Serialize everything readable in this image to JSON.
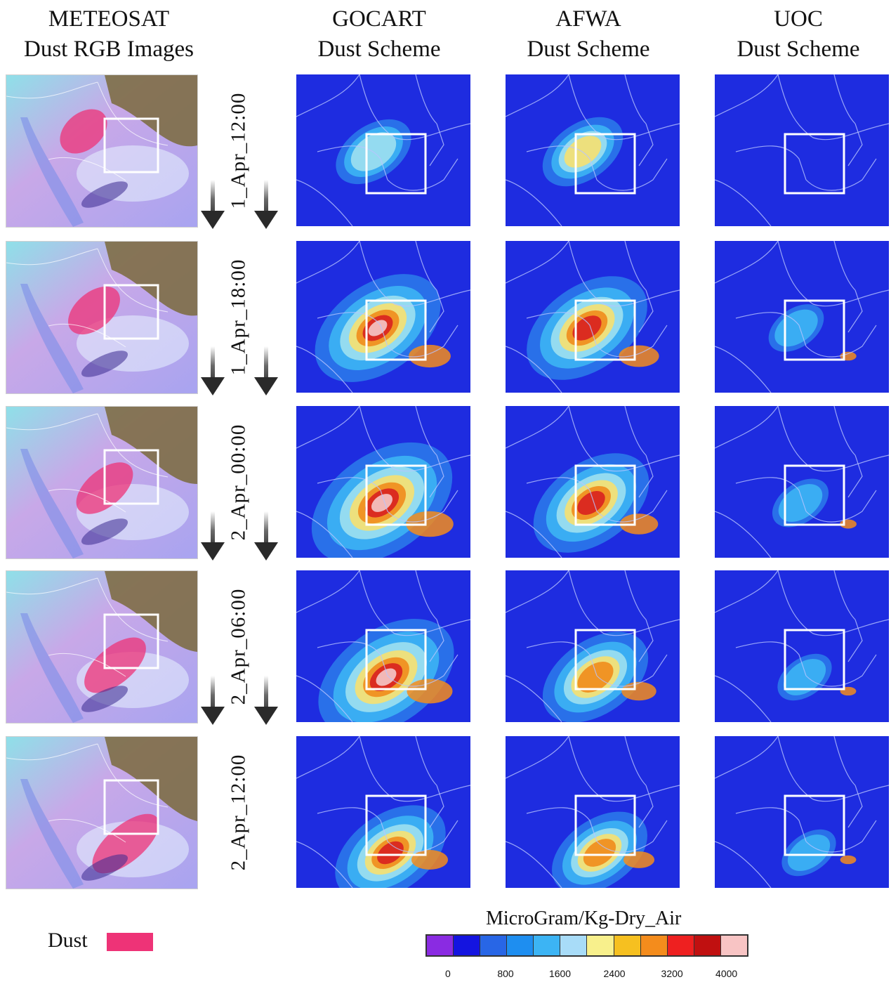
{
  "columns": {
    "meteosat": [
      "METEOSAT",
      "Dust RGB Images"
    ],
    "gocart": [
      "GOCART",
      "Dust Scheme"
    ],
    "afwa": [
      "AFWA",
      "Dust Scheme"
    ],
    "uoc": [
      "UOC",
      "Dust Scheme"
    ]
  },
  "rows": [
    {
      "time": "1_Apr_12:00",
      "gocart": 0.25,
      "afwa": 0.3,
      "uoc": 0.0
    },
    {
      "time": "1_Apr_18:00",
      "gocart": 0.75,
      "afwa": 0.7,
      "uoc": 0.05
    },
    {
      "time": "2_Apr_00:00",
      "gocart": 0.9,
      "afwa": 0.65,
      "uoc": 0.06
    },
    {
      "time": "2_Apr_06:00",
      "gocart": 0.85,
      "afwa": 0.55,
      "uoc": 0.04
    },
    {
      "time": "2_Apr_12:00",
      "gocart": 0.6,
      "afwa": 0.45,
      "uoc": 0.04
    }
  ],
  "legend": {
    "dust_label": "Dust",
    "dust_color": "#ee3377"
  },
  "colorbar": {
    "title": "MicroGram/Kg-Dry_Air",
    "ticks": [
      "0",
      "800",
      "1600",
      "2400",
      "3200",
      "4000"
    ],
    "colors": [
      "#8a2be2",
      "#1414e0",
      "#2866e6",
      "#1e8ef0",
      "#3cb4f4",
      "#a8dcf8",
      "#f8f08c",
      "#f6c020",
      "#f48c1c",
      "#ee2020",
      "#c01010",
      "#f8c4c4"
    ]
  }
}
